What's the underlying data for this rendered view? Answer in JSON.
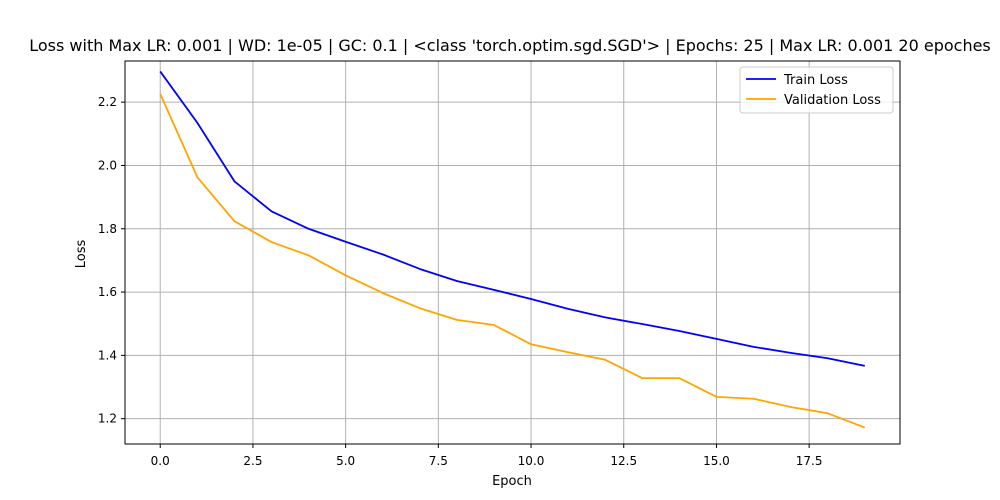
{
  "chart_data": {
    "type": "line",
    "title": "Loss with Max LR: 0.001 | WD: 1e-05 | GC: 0.1 | <class 'torch.optim.sgd.SGD'> | Epochs: 25 | Max LR: 0.001 20 epoches",
    "xlabel": "Epoch",
    "ylabel": "Loss",
    "xlim": [
      -0.95,
      19.95
    ],
    "ylim": [
      1.12,
      2.33
    ],
    "xticks": [
      0,
      2.5,
      5,
      7.5,
      10,
      12.5,
      15,
      17.5
    ],
    "xtick_labels": [
      "0.0",
      "2.5",
      "5.0",
      "7.5",
      "10.0",
      "12.5",
      "15.0",
      "17.5"
    ],
    "yticks": [
      1.2,
      1.4,
      1.6,
      1.8,
      2.0,
      2.2
    ],
    "ytick_labels": [
      "1.2",
      "1.4",
      "1.6",
      "1.8",
      "2.0",
      "2.2"
    ],
    "grid": true,
    "legend_position": "top-right",
    "x": [
      0,
      1,
      2,
      3,
      4,
      5,
      6,
      7,
      8,
      9,
      10,
      11,
      12,
      13,
      14,
      15,
      16,
      17,
      18,
      19
    ],
    "series": [
      {
        "name": "Train Loss",
        "color": "#0000ff",
        "values": [
          2.297,
          2.135,
          1.95,
          1.855,
          1.8,
          1.759,
          1.719,
          1.673,
          1.635,
          1.607,
          1.578,
          1.547,
          1.52,
          1.499,
          1.477,
          1.452,
          1.427,
          1.408,
          1.391,
          1.367
        ]
      },
      {
        "name": "Validation Loss",
        "color": "#ffa500",
        "values": [
          2.226,
          1.963,
          1.824,
          1.758,
          1.716,
          1.653,
          1.597,
          1.549,
          1.512,
          1.496,
          1.435,
          1.41,
          1.386,
          1.328,
          1.328,
          1.269,
          1.263,
          1.237,
          1.217,
          1.172
        ]
      }
    ]
  }
}
